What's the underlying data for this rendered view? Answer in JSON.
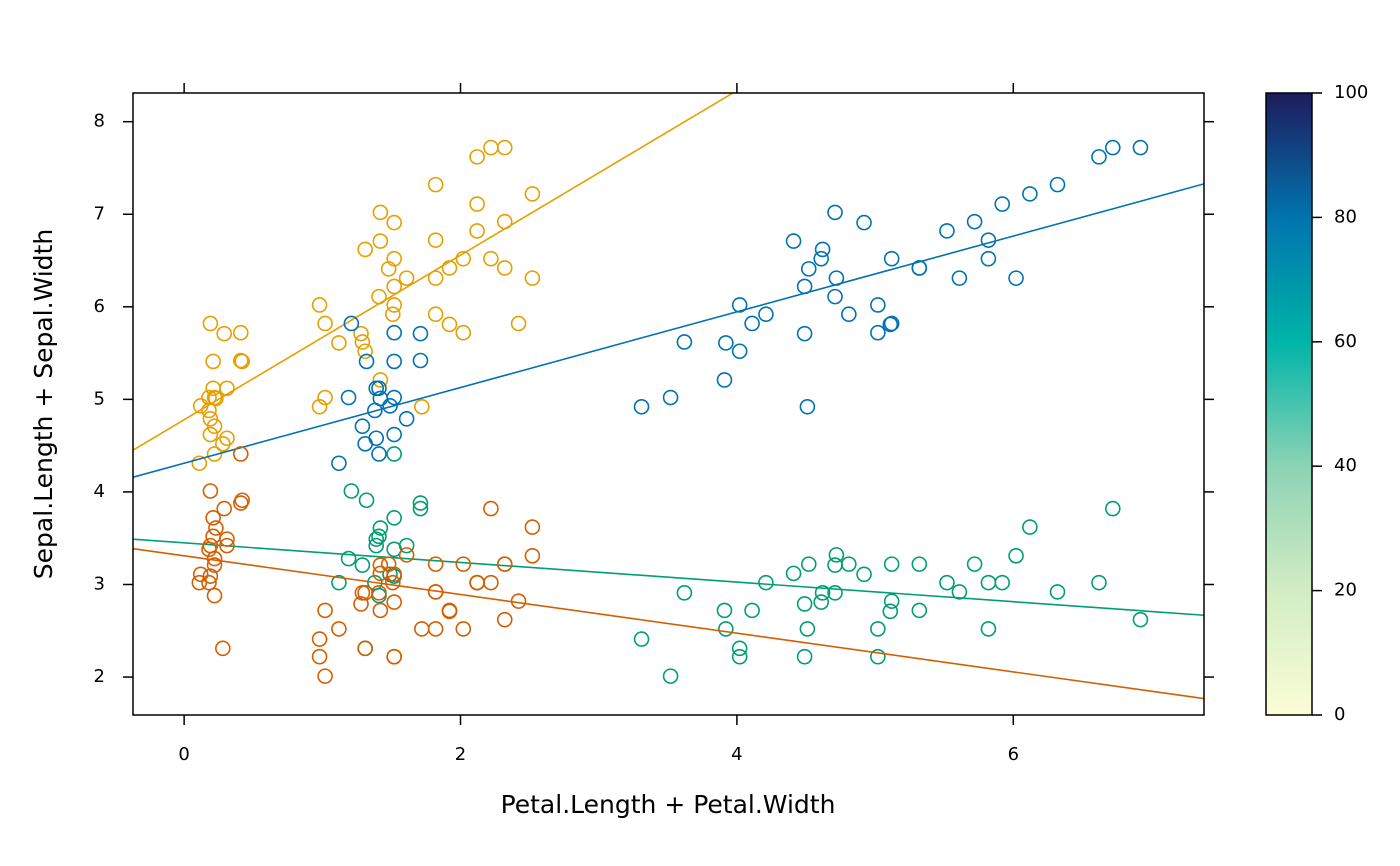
{
  "chart_data": {
    "type": "scatter",
    "xlabel": "Petal.Length + Petal.Width",
    "ylabel": "Sepal.Length + Sepal.Width",
    "xlim": [
      -0.37,
      7.38
    ],
    "ylim": [
      1.59,
      8.31
    ],
    "xticks": [
      0,
      2,
      4,
      6
    ],
    "yticks": [
      2,
      3,
      4,
      5,
      6,
      7,
      8
    ],
    "series": [
      {
        "color": "#E69F00",
        "x": [
          0.21,
          0.18,
          0.22,
          0.19,
          0.23,
          0.41,
          0.31,
          0.18,
          0.22,
          0.12,
          0.21,
          0.19,
          0.11,
          0.19,
          0.41,
          0.42,
          0.31,
          0.29,
          0.28,
          0.22,
          1.42,
          1.48,
          1.52,
          1.31,
          1.52,
          1.28,
          1.61,
          0.98,
          1.31,
          1.42,
          1.02,
          1.51,
          0.98,
          1.41,
          1.29,
          1.42,
          1.02,
          1.52,
          1.12,
          1.82,
          2.52,
          1.92,
          2.12,
          1.82,
          2.22,
          2.12,
          1.72,
          1.82,
          1.82,
          2.52,
          2.02,
          1.92,
          2.12,
          2.02,
          2.42,
          2.32,
          2.22,
          2.32,
          1.52,
          2.32
        ],
        "values": [
          5.12,
          4.88,
          4.71,
          4.62,
          5.01,
          5.42,
          4.58,
          5.02,
          4.41,
          4.93,
          5.41,
          4.79,
          4.31,
          5.82,
          5.72,
          5.41,
          5.12,
          5.71,
          4.52,
          5.02,
          7.02,
          6.41,
          6.91,
          5.52,
          6.52,
          5.71,
          6.31,
          4.92,
          6.62,
          5.21,
          5.02,
          5.92,
          6.02,
          6.11,
          5.62,
          6.71,
          5.82,
          6.22,
          5.61,
          5.92,
          6.31,
          5.81,
          7.11,
          6.31,
          6.52,
          7.62,
          4.92,
          7.32,
          6.72,
          7.22,
          6.52,
          6.42,
          6.82,
          5.72,
          5.82,
          6.42,
          7.72,
          7.72,
          6.02,
          6.92
        ],
        "fit": {
          "intercept": 4.78,
          "slope": 0.889
        }
      },
      {
        "color": "#0072B2",
        "x": [
          1.41,
          1.38,
          1.29,
          1.52,
          1.42,
          1.71,
          1.39,
          1.52,
          1.41,
          1.49,
          1.52,
          1.61,
          1.12,
          1.21,
          1.52,
          1.32,
          1.39,
          1.71,
          1.31,
          1.19,
          4.71,
          4.52,
          4.92,
          4.02,
          4.61,
          4.49,
          4.72,
          3.31,
          4.62,
          3.91,
          3.52,
          4.21,
          4.02,
          4.71,
          3.62,
          4.41,
          4.11,
          4.49,
          3.92,
          4.81,
          6.02,
          5.11,
          5.92,
          5.61,
          5.82,
          6.62,
          4.51,
          6.32,
          5.82,
          6.12,
          5.12,
          5.32,
          5.52,
          5.02,
          5.12,
          5.32,
          6.72,
          6.92,
          5.02,
          5.72
        ],
        "values": [
          5.12,
          4.88,
          4.71,
          4.62,
          5.01,
          5.42,
          4.58,
          5.02,
          4.41,
          4.93,
          5.41,
          4.79,
          4.31,
          5.82,
          5.72,
          5.41,
          5.12,
          5.71,
          4.52,
          5.02,
          7.02,
          6.41,
          6.91,
          5.52,
          6.52,
          5.71,
          6.31,
          4.92,
          6.62,
          5.21,
          5.02,
          5.92,
          6.02,
          6.11,
          5.62,
          6.71,
          5.82,
          6.22,
          5.61,
          5.92,
          6.31,
          5.81,
          7.11,
          6.31,
          6.52,
          7.62,
          4.92,
          7.32,
          6.72,
          7.22,
          6.52,
          6.42,
          6.82,
          5.72,
          5.82,
          6.42,
          7.72,
          7.72,
          6.02,
          6.92
        ],
        "fit": {
          "intercept": 4.31,
          "slope": 0.409
        }
      },
      {
        "color": "#009E73",
        "x": [
          1.41,
          1.38,
          1.29,
          1.52,
          1.42,
          1.71,
          1.39,
          1.52,
          1.41,
          1.49,
          1.52,
          1.61,
          1.12,
          1.21,
          1.52,
          1.32,
          1.39,
          1.71,
          1.31,
          1.19,
          4.71,
          4.52,
          4.92,
          4.02,
          4.61,
          4.49,
          4.72,
          3.31,
          4.62,
          3.91,
          3.52,
          4.21,
          4.02,
          4.71,
          3.62,
          4.41,
          4.11,
          4.49,
          3.92,
          4.81,
          6.02,
          5.11,
          5.92,
          5.61,
          5.82,
          6.62,
          4.51,
          6.32,
          5.82,
          6.12,
          5.12,
          5.32,
          5.52,
          5.02,
          5.12,
          5.32,
          6.72,
          6.92,
          5.02,
          5.72
        ],
        "values": [
          3.52,
          3.02,
          3.21,
          3.09,
          3.61,
          3.88,
          3.42,
          3.38,
          2.88,
          3.11,
          3.72,
          3.42,
          3.02,
          4.01,
          4.41,
          3.91,
          3.49,
          3.82,
          2.31,
          3.28,
          3.21,
          3.22,
          3.11,
          2.31,
          2.81,
          2.79,
          3.32,
          2.41,
          2.91,
          2.72,
          2.01,
          3.02,
          2.22,
          2.91,
          2.91,
          3.12,
          2.72,
          2.22,
          2.52,
          3.22,
          3.31,
          2.71,
          3.02,
          2.92,
          3.02,
          3.02,
          2.52,
          2.92,
          2.52,
          3.62,
          3.22,
          2.72,
          3.02,
          2.52,
          2.82,
          3.22,
          3.82,
          2.62,
          2.22,
          3.22
        ],
        "fit": {
          "intercept": 3.45,
          "slope": -0.106
        }
      },
      {
        "color": "#D55E00",
        "x": [
          0.21,
          0.18,
          0.22,
          0.19,
          0.23,
          0.41,
          0.31,
          0.18,
          0.22,
          0.12,
          0.21,
          0.19,
          0.11,
          0.19,
          0.41,
          0.42,
          0.31,
          0.29,
          0.28,
          0.22,
          1.42,
          1.48,
          1.52,
          1.31,
          1.52,
          1.28,
          1.61,
          0.98,
          1.31,
          1.42,
          1.02,
          1.51,
          0.98,
          1.41,
          1.29,
          1.42,
          1.02,
          1.52,
          1.12,
          1.82,
          2.52,
          1.92,
          2.12,
          1.82,
          2.22,
          2.12,
          1.72,
          1.82,
          1.82,
          2.52,
          2.02,
          1.92,
          2.12,
          2.02,
          2.42,
          2.32,
          2.22,
          2.32,
          1.52,
          2.32
        ],
        "values": [
          3.52,
          3.02,
          3.21,
          3.09,
          3.61,
          3.88,
          3.42,
          3.38,
          2.88,
          3.11,
          3.72,
          3.42,
          3.02,
          4.01,
          4.41,
          3.91,
          3.49,
          3.82,
          2.31,
          3.28,
          3.21,
          3.22,
          3.11,
          2.31,
          2.81,
          2.79,
          3.32,
          2.41,
          2.91,
          2.72,
          2.01,
          3.02,
          2.22,
          2.91,
          2.91,
          3.12,
          2.72,
          2.22,
          2.52,
          3.22,
          3.31,
          2.71,
          3.02,
          2.92,
          3.02,
          3.02,
          2.52,
          2.92,
          2.52,
          3.62,
          3.22,
          2.72,
          3.02,
          2.52,
          2.82,
          3.22,
          3.82,
          2.62,
          2.22,
          3.22
        ],
        "fit": {
          "intercept": 3.31,
          "slope": -0.209
        }
      }
    ],
    "colorbar": {
      "lim": [
        0,
        100
      ],
      "ticks": [
        0,
        20,
        40,
        60,
        80,
        100
      ],
      "colors": [
        "#FBFDD6",
        "#D2EDC4",
        "#8CD3B5",
        "#00B4A8",
        "#0074AE",
        "#1F1B5C"
      ]
    }
  }
}
